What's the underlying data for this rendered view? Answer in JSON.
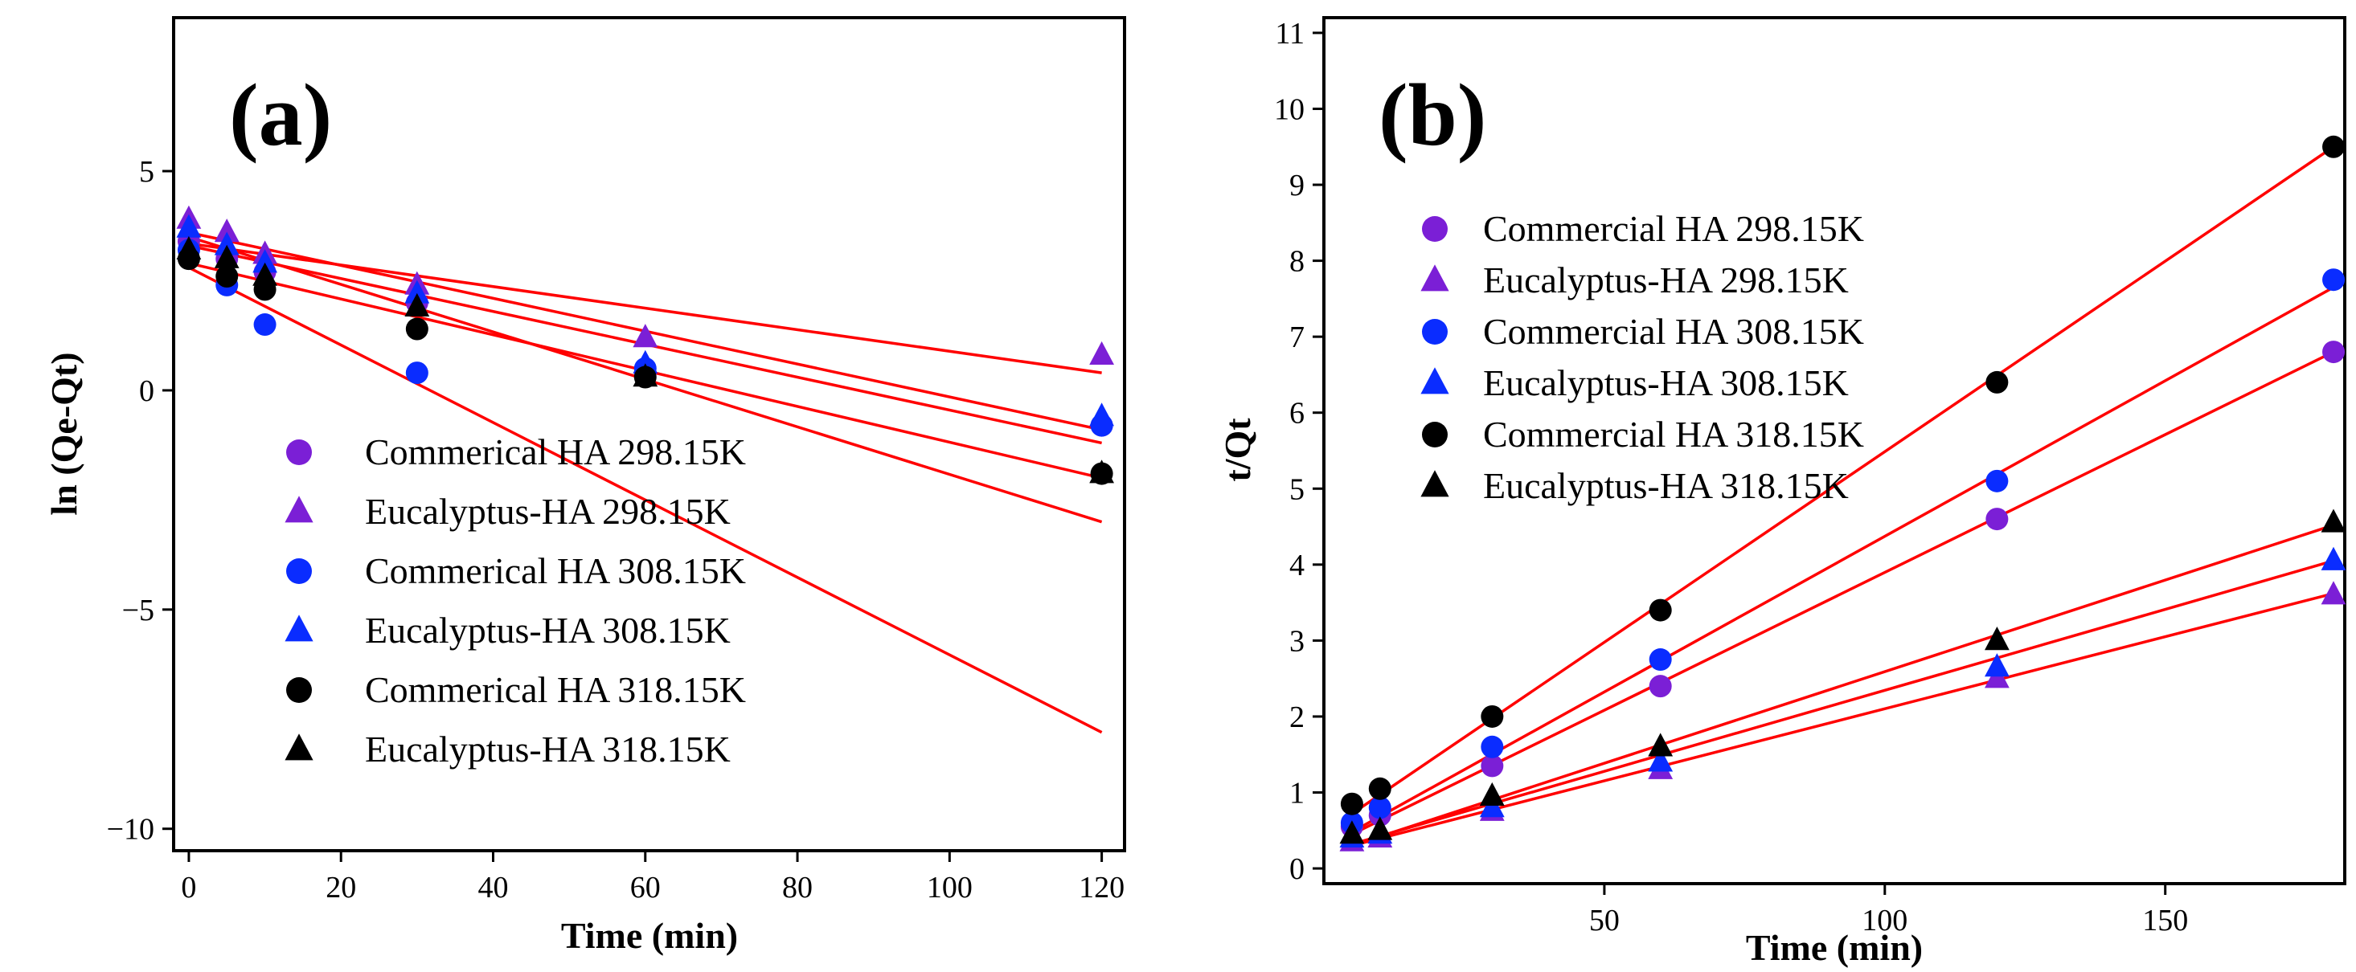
{
  "colors": {
    "purple": "#7b1fd6",
    "blue": "#0a2cff",
    "black": "#000000",
    "fit": "#ff0000"
  },
  "chart_data": [
    {
      "type": "scatter",
      "panel_label": "(a)",
      "xlabel": "Time (min)",
      "ylabel": "ln (Qe-Qt)",
      "xlim": [
        -2,
        123
      ],
      "ylim": [
        -10.5,
        8.5
      ],
      "xticks": [
        0,
        20,
        40,
        60,
        80,
        100,
        120
      ],
      "xtick_labels": [
        "0",
        "20",
        "40",
        "60",
        "80",
        "100",
        "120"
      ],
      "yticks": [
        -10,
        -5,
        0,
        5
      ],
      "ytick_labels": [
        "−10",
        "−5",
        "0",
        "5"
      ],
      "grid": false,
      "legend_position": "bottom-center",
      "series": [
        {
          "name": "Commerical HA 298.15K",
          "marker": "circle",
          "color": "purple",
          "x": [
            0,
            5,
            10,
            30,
            60,
            120
          ],
          "y": [
            3.4,
            3.0,
            2.7,
            2.0,
            0.4,
            -0.8
          ]
        },
        {
          "name": "Eucalyptus-HA 298.15K",
          "marker": "triangle",
          "color": "purple",
          "x": [
            0,
            5,
            10,
            30,
            60,
            120
          ],
          "y": [
            3.9,
            3.6,
            3.1,
            2.4,
            1.2,
            0.8
          ]
        },
        {
          "name": "Commerical HA 308.15K",
          "marker": "circle",
          "color": "blue",
          "x": [
            0,
            5,
            10,
            30,
            60,
            120
          ],
          "y": [
            3.2,
            2.4,
            1.5,
            0.4,
            0.5,
            -0.8
          ]
        },
        {
          "name": "Eucalyptus-HA 308.15K",
          "marker": "triangle",
          "color": "blue",
          "x": [
            0,
            5,
            10,
            30,
            60,
            120
          ],
          "y": [
            3.7,
            3.3,
            2.9,
            2.2,
            0.6,
            -0.6
          ]
        },
        {
          "name": "Commerical HA 318.15K",
          "marker": "circle",
          "color": "black",
          "x": [
            0,
            5,
            10,
            30,
            60,
            120
          ],
          "y": [
            3.0,
            2.6,
            2.3,
            1.4,
            0.3,
            -1.9
          ]
        },
        {
          "name": "Eucalyptus-HA 318.15K",
          "marker": "triangle",
          "color": "black",
          "x": [
            0,
            5,
            10,
            30,
            60,
            120
          ],
          "y": [
            3.2,
            3.0,
            2.6,
            1.9,
            0.3,
            -1.9
          ]
        }
      ],
      "fit_lines": [
        {
          "x": [
            0,
            120
          ],
          "y": [
            3.35,
            0.4
          ]
        },
        {
          "x": [
            0,
            120
          ],
          "y": [
            3.6,
            -0.9
          ]
        },
        {
          "x": [
            0,
            120
          ],
          "y": [
            3.3,
            -1.2
          ]
        },
        {
          "x": [
            0,
            120
          ],
          "y": [
            2.9,
            -2.0
          ]
        },
        {
          "x": [
            0,
            120
          ],
          "y": [
            3.5,
            -3.0
          ]
        },
        {
          "x": [
            0,
            120
          ],
          "y": [
            2.8,
            -7.8
          ]
        }
      ]
    },
    {
      "type": "scatter",
      "panel_label": "(b)",
      "xlabel": "Time (min)",
      "ylabel": "t/Qt",
      "xlim": [
        0,
        182
      ],
      "ylim": [
        -0.2,
        11.2
      ],
      "xticks": [
        50,
        100,
        150
      ],
      "xtick_labels": [
        "50",
        "100",
        "150"
      ],
      "yticks": [
        0,
        1,
        2,
        3,
        4,
        5,
        6,
        7,
        8,
        9,
        10,
        11
      ],
      "ytick_labels": [
        "0",
        "1",
        "2",
        "3",
        "4",
        "5",
        "6",
        "7",
        "8",
        "9",
        "10",
        "11"
      ],
      "grid": false,
      "legend_position": "top-left",
      "series": [
        {
          "name": "Commercial HA 298.15K",
          "marker": "circle",
          "color": "purple",
          "x": [
            5,
            10,
            30,
            60,
            120,
            180
          ],
          "y": [
            0.55,
            0.7,
            1.35,
            2.4,
            4.6,
            6.8
          ]
        },
        {
          "name": "Eucalyptus-HA 298.15K",
          "marker": "triangle",
          "color": "purple",
          "x": [
            5,
            10,
            30,
            60,
            120,
            180
          ],
          "y": [
            0.35,
            0.4,
            0.75,
            1.3,
            2.5,
            3.6
          ]
        },
        {
          "name": "Commercial HA 308.15K",
          "marker": "circle",
          "color": "blue",
          "x": [
            5,
            10,
            30,
            60,
            120,
            180
          ],
          "y": [
            0.6,
            0.8,
            1.6,
            2.75,
            5.1,
            7.75
          ]
        },
        {
          "name": "Eucalyptus-HA 308.15K",
          "marker": "triangle",
          "color": "blue",
          "x": [
            5,
            10,
            30,
            60,
            120,
            180
          ],
          "y": [
            0.4,
            0.45,
            0.8,
            1.4,
            2.65,
            4.05
          ]
        },
        {
          "name": "Commercial HA 318.15K",
          "marker": "circle",
          "color": "black",
          "x": [
            5,
            10,
            30,
            60,
            120,
            180
          ],
          "y": [
            0.85,
            1.05,
            2.0,
            3.4,
            6.4,
            9.5
          ]
        },
        {
          "name": "Eucalyptus-HA 318.15K",
          "marker": "triangle",
          "color": "black",
          "x": [
            5,
            10,
            30,
            60,
            120,
            180
          ],
          "y": [
            0.45,
            0.5,
            0.95,
            1.6,
            3.0,
            4.55
          ]
        }
      ],
      "fit_lines": [
        {
          "x": [
            5,
            180
          ],
          "y": [
            0.45,
            6.8
          ]
        },
        {
          "x": [
            5,
            180
          ],
          "y": [
            0.3,
            3.62
          ]
        },
        {
          "x": [
            5,
            180
          ],
          "y": [
            0.48,
            7.65
          ]
        },
        {
          "x": [
            5,
            180
          ],
          "y": [
            0.32,
            4.05
          ]
        },
        {
          "x": [
            5,
            180
          ],
          "y": [
            0.72,
            9.5
          ]
        },
        {
          "x": [
            5,
            180
          ],
          "y": [
            0.3,
            4.52
          ]
        }
      ]
    }
  ]
}
